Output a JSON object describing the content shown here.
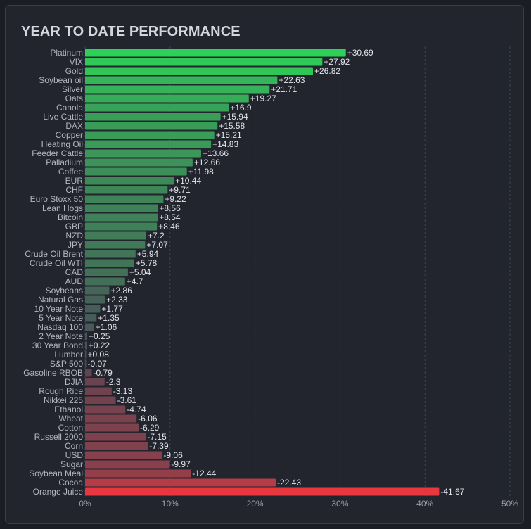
{
  "title": "YEAR TO DATE PERFORMANCE",
  "colors": {
    "positive_strong": "#2ed158",
    "positive_weak": "#3e4e4e",
    "neutral": "#4a4f58",
    "negative_weak": "#594552",
    "negative_strong": "#e8373f",
    "grid": "#3b4556",
    "background": "#22252e"
  },
  "chart_data": {
    "type": "bar",
    "orientation": "horizontal",
    "title": "YEAR TO DATE PERFORMANCE",
    "xlim": [
      0,
      50
    ],
    "xticks": [
      0,
      10,
      20,
      30,
      40,
      50
    ],
    "xtick_labels": [
      "0%",
      "10%",
      "20%",
      "30%",
      "40%",
      "50%"
    ],
    "grid": "vertical dashed",
    "categories": [
      "Platinum",
      "VIX",
      "Gold",
      "Soybean oil",
      "Silver",
      "Oats",
      "Canola",
      "Live Cattle",
      "DAX",
      "Copper",
      "Heating Oil",
      "Feeder Cattle",
      "Palladium",
      "Coffee",
      "EUR",
      "CHF",
      "Euro Stoxx 50",
      "Lean Hogs",
      "Bitcoin",
      "GBP",
      "NZD",
      "JPY",
      "Crude Oil Brent",
      "Crude Oil WTI",
      "CAD",
      "AUD",
      "Soybeans",
      "Natural Gas",
      "10 Year Note",
      "5 Year Note",
      "Nasdaq 100",
      "2 Year Note",
      "30 Year Bond",
      "Lumber",
      "S&P 500",
      "Gasoline RBOB",
      "DJIA",
      "Rough Rice",
      "Nikkei 225",
      "Ethanol",
      "Wheat",
      "Cotton",
      "Russell 2000",
      "Corn",
      "USD",
      "Sugar",
      "Soybean Meal",
      "Cocoa",
      "Orange Juice"
    ],
    "values": [
      30.69,
      27.92,
      26.82,
      22.63,
      21.71,
      19.27,
      16.9,
      15.94,
      15.58,
      15.21,
      14.83,
      13.66,
      12.66,
      11.98,
      10.44,
      9.71,
      9.22,
      8.56,
      8.54,
      8.46,
      7.2,
      7.07,
      5.94,
      5.78,
      5.04,
      4.7,
      2.86,
      2.33,
      1.77,
      1.35,
      1.06,
      0.25,
      0.22,
      0.08,
      -0.07,
      -0.79,
      -2.3,
      -3.13,
      -3.61,
      -4.74,
      -6.06,
      -6.29,
      -7.15,
      -7.39,
      -9.06,
      -9.97,
      -12.44,
      -22.43,
      -41.67
    ],
    "value_labels": [
      "+30.69",
      "+27.92",
      "+26.82",
      "+22.63",
      "+21.71",
      "+19.27",
      "+16.9",
      "+15.94",
      "+15.58",
      "+15.21",
      "+14.83",
      "+13.66",
      "+12.66",
      "+11.98",
      "+10.44",
      "+9.71",
      "+9.22",
      "+8.56",
      "+8.54",
      "+8.46",
      "+7.2",
      "+7.07",
      "+5.94",
      "+5.78",
      "+5.04",
      "+4.7",
      "+2.86",
      "+2.33",
      "+1.77",
      "+1.35",
      "+1.06",
      "+0.25",
      "+0.22",
      "+0.08",
      "-0.07",
      "-0.79",
      "-2.3",
      "-3.13",
      "-3.61",
      "-4.74",
      "-6.06",
      "-6.29",
      "-7.15",
      "-7.39",
      "-9.06",
      "-9.97",
      "-12.44",
      "-22.43",
      "-41.67"
    ]
  }
}
